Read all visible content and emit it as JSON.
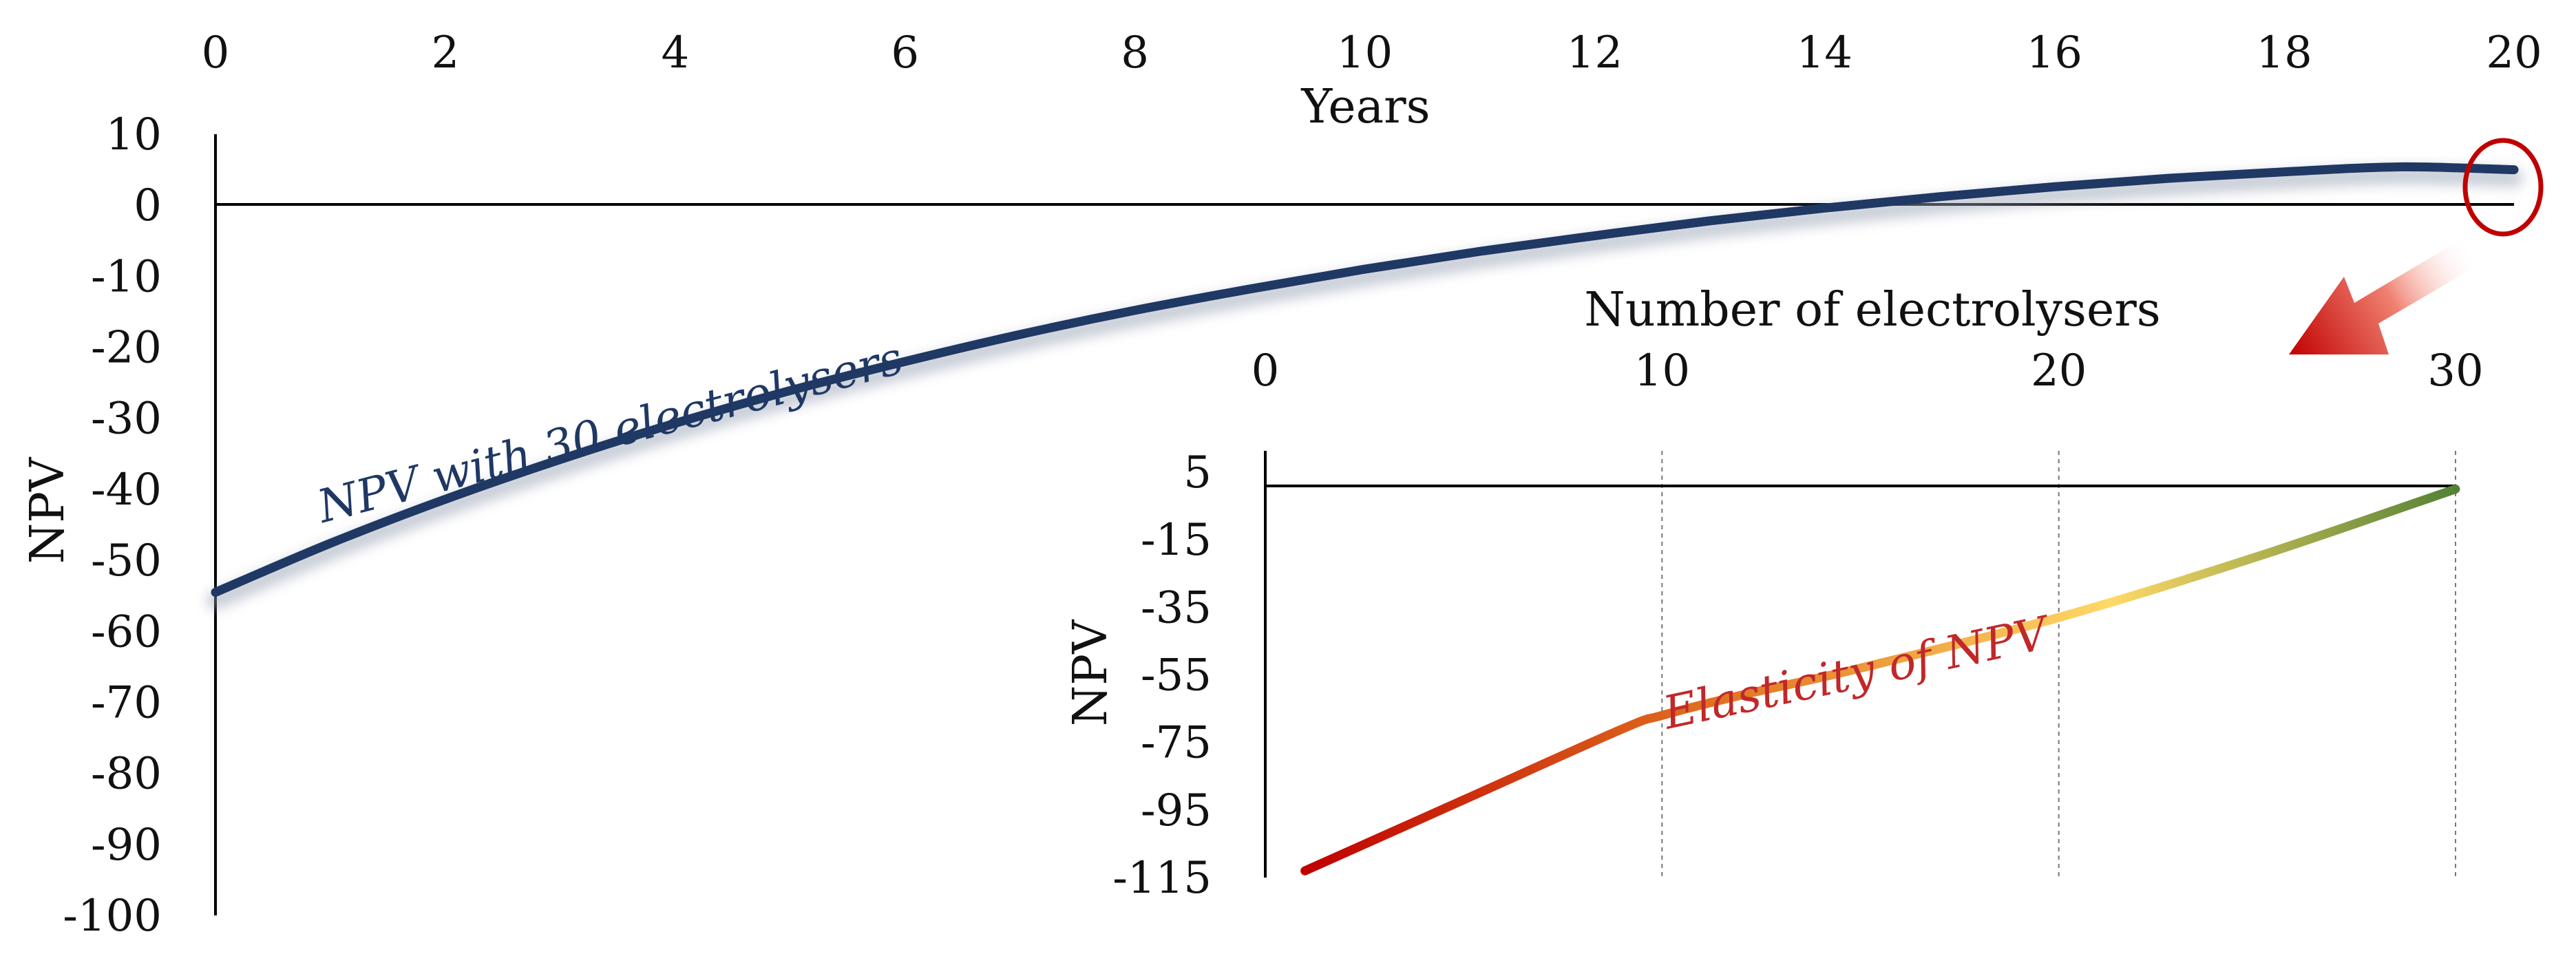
{
  "chart_data": [
    {
      "type": "line",
      "xlabel": "Years",
      "ylabel": "NPV",
      "x_ticks": [
        0,
        2,
        4,
        6,
        8,
        10,
        12,
        14,
        16,
        18,
        20
      ],
      "y_ticks": [
        10,
        0,
        -10,
        -20,
        -30,
        -40,
        -50,
        -60,
        -70,
        -80,
        -90,
        -100
      ],
      "xlim": [
        0,
        20
      ],
      "ylim": [
        -100,
        10
      ],
      "x_axis_position": "top",
      "grid": false,
      "series": [
        {
          "name": "NPV with 30 electrolysers",
          "color": "#1f3864",
          "x": [
            0,
            1,
            2,
            3,
            4,
            5,
            6,
            7,
            8,
            9,
            10,
            11,
            12,
            13,
            14,
            15,
            16,
            17,
            18,
            19,
            20
          ],
          "y": [
            -54.5,
            -47.6,
            -41.4,
            -35.8,
            -30.7,
            -26.1,
            -22.0,
            -18.2,
            -14.8,
            -11.8,
            -9.0,
            -6.5,
            -4.3,
            -2.2,
            -0.4,
            1.2,
            2.6,
            3.8,
            4.7,
            5.4,
            5.0
          ]
        }
      ],
      "annotation": {
        "shape": "circle",
        "at": {
          "x": 20,
          "y": 5
        },
        "color": "#c00000",
        "arrow": "points to inset chart"
      }
    },
    {
      "type": "line",
      "xlabel": "Number of electrolysers",
      "ylabel": "NPV",
      "x_ticks": [
        0,
        10,
        20,
        30
      ],
      "y_ticks": [
        5,
        -15,
        -35,
        -55,
        -75,
        -95,
        -115
      ],
      "xlim": [
        0,
        30
      ],
      "ylim": [
        -115,
        5
      ],
      "x_axis_position": "top",
      "grid": "vertical dashed",
      "series": [
        {
          "name": "Elasticity of NPV",
          "gradient": [
            "#c00000",
            "#e07020",
            "#ffd966",
            "#548235"
          ],
          "x": [
            1,
            5,
            9,
            10,
            12,
            15,
            20,
            25,
            30
          ],
          "y": [
            -113,
            -92,
            -71,
            -67,
            -61,
            -53,
            -38,
            -20,
            0
          ]
        }
      ]
    }
  ]
}
